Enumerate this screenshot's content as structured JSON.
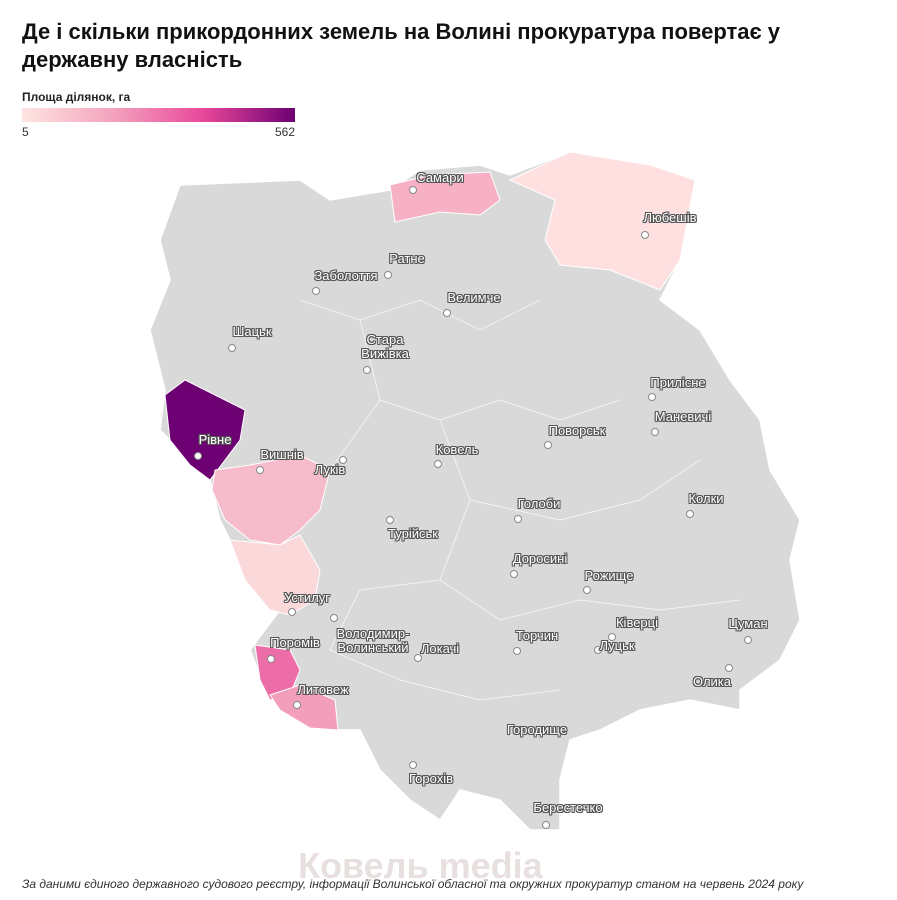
{
  "header": {
    "title": "Де і скільки прикордонних земель на Волині прокуратура повертає у державну власність"
  },
  "legend": {
    "title": "Площа ділянок, га",
    "min": 5,
    "max": 562,
    "colors": [
      "#fde4e1",
      "#f4a3bd",
      "#e8479a",
      "#6d0072"
    ]
  },
  "regions": [
    {
      "value": 562
    },
    {
      "value": 120
    },
    {
      "value": 40
    },
    {
      "value": 300
    },
    {
      "value": 200
    },
    {
      "value": 150
    },
    {
      "value": 15
    }
  ],
  "places": [
    "Самари",
    "Любешів",
    "Ратне",
    "Заболоття",
    "Велимче",
    "Шацьк",
    "Стара Вижівка",
    "Прилісне",
    "Маневичі",
    "Рівне",
    "Вишнів",
    "Луків",
    "Ковель",
    "Поворськ",
    "Колки",
    "Голоби",
    "Турійськ",
    "Доросині",
    "Рожище",
    "Устилуг",
    "Володимир-Волинський",
    "Ківерці",
    "Цуман",
    "Торчин",
    "Луцьк",
    "Локачі",
    "Поромів",
    "Олика",
    "Литовеж",
    "Городище",
    "Горохів",
    "Берестечко"
  ],
  "watermark": "Ковель media",
  "source": "За даними єдиного державного судового реєстру, інформації Волинської обласної та окружних прокуратур станом на червень 2024 року"
}
